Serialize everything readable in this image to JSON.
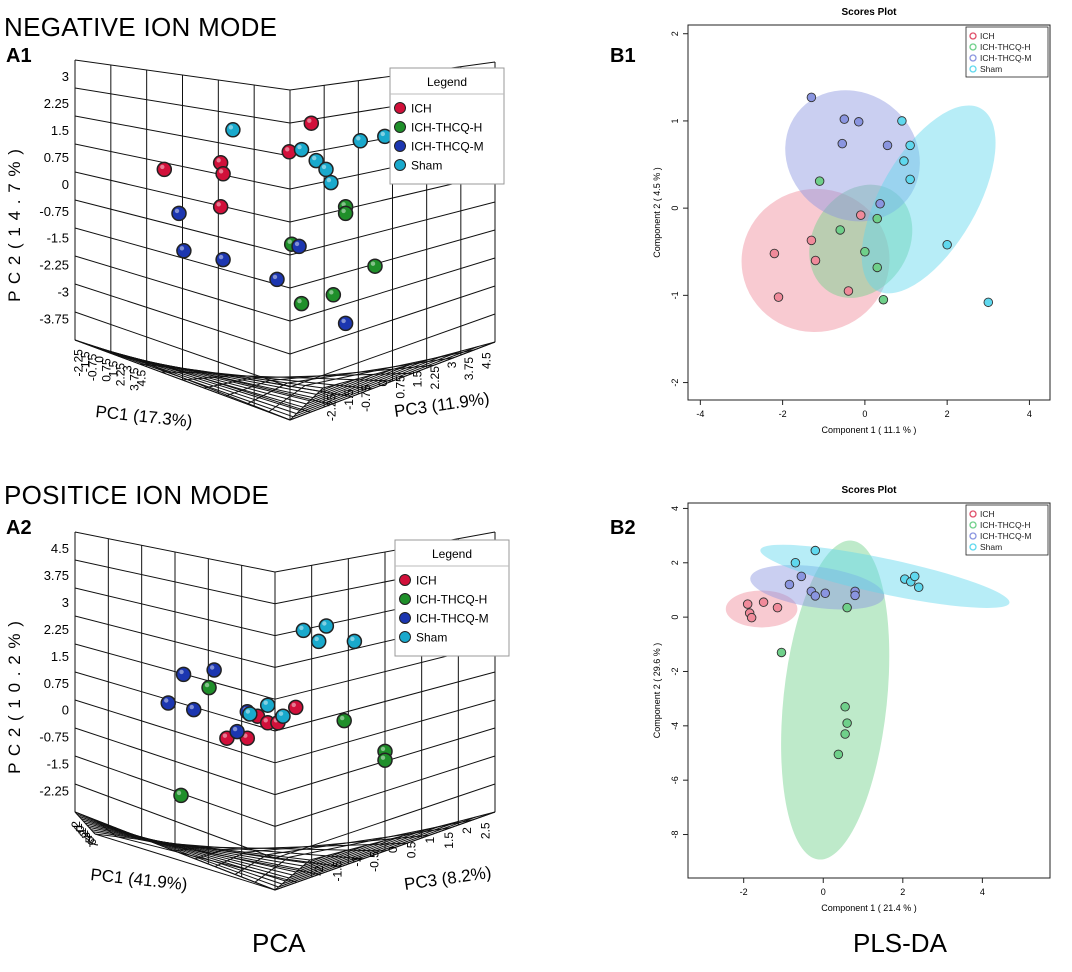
{
  "labels": {
    "negative_mode": "NEGATIVE ION MODE",
    "positive_mode": "POSITICE ION MODE",
    "pca": "PCA",
    "plsda": "PLS-DA"
  },
  "colors": {
    "ICH": "#d1103a",
    "ICH-THCQ-H": "#1f8f2a",
    "ICH-THCQ-M": "#1c36b0",
    "Sham": "#19a9cc"
  },
  "pls_colors": {
    "ICH": "#f08a9a",
    "ICH-THCQ-H": "#6fd08a",
    "ICH-THCQ-M": "#8a95e0",
    "Sham": "#5fd8ee"
  },
  "chart_data": [
    {
      "panel": "A1",
      "type": "scatter",
      "subtype": "3d-scatter",
      "title": "",
      "legend_title": "Legend",
      "legend": [
        "ICH",
        "ICH-THCQ-H",
        "ICH-THCQ-M",
        "Sham"
      ],
      "pc1_label": "PC1 (17.3%)",
      "pc2_label": "P C 2  ( 1 4 . 7 % )",
      "pc3_label": "PC3 (11.9%)",
      "pc1_ticks": [
        "-2.25",
        "-1.5",
        "-0.75",
        "0",
        "0.75",
        "1.5",
        "2.25",
        "3",
        "3.75",
        "4.5"
      ],
      "pc2_ticks": [
        "3",
        "2.25",
        "1.5",
        "0.75",
        "0",
        "-0.75",
        "-1.5",
        "-2.25",
        "-3",
        "-3.75"
      ],
      "pc3_ticks": [
        "-2.25",
        "-1.5",
        "-0.75",
        "0",
        "0.75",
        "1.5",
        "2.25",
        "3",
        "3.75",
        "4.5"
      ],
      "projected_points": [
        {
          "group": "ICH",
          "x": 0.14,
          "y": 0.27
        },
        {
          "group": "ICH",
          "x": 0.37,
          "y": 0.24
        },
        {
          "group": "ICH",
          "x": 0.38,
          "y": 0.29
        },
        {
          "group": "ICH",
          "x": 0.37,
          "y": 0.44
        },
        {
          "group": "ICH",
          "x": 0.65,
          "y": 0.19
        },
        {
          "group": "ICH",
          "x": 0.74,
          "y": 0.06
        },
        {
          "group": "ICH-THCQ-H",
          "x": 0.66,
          "y": 0.61
        },
        {
          "group": "ICH-THCQ-H",
          "x": 0.7,
          "y": 0.88
        },
        {
          "group": "ICH-THCQ-H",
          "x": 0.83,
          "y": 0.84
        },
        {
          "group": "ICH-THCQ-H",
          "x": 0.88,
          "y": 0.44
        },
        {
          "group": "ICH-THCQ-H",
          "x": 0.88,
          "y": 0.47
        },
        {
          "group": "ICH-THCQ-H",
          "x": 1.0,
          "y": 0.71
        },
        {
          "group": "ICH-THCQ-M",
          "x": 0.2,
          "y": 0.47
        },
        {
          "group": "ICH-THCQ-M",
          "x": 0.22,
          "y": 0.64
        },
        {
          "group": "ICH-THCQ-M",
          "x": 0.38,
          "y": 0.68
        },
        {
          "group": "ICH-THCQ-M",
          "x": 0.6,
          "y": 0.77
        },
        {
          "group": "ICH-THCQ-M",
          "x": 0.69,
          "y": 0.62
        },
        {
          "group": "ICH-THCQ-M",
          "x": 0.88,
          "y": 0.97
        },
        {
          "group": "Sham",
          "x": 0.42,
          "y": 0.09
        },
        {
          "group": "Sham",
          "x": 0.7,
          "y": 0.18
        },
        {
          "group": "Sham",
          "x": 0.76,
          "y": 0.23
        },
        {
          "group": "Sham",
          "x": 0.8,
          "y": 0.27
        },
        {
          "group": "Sham",
          "x": 0.82,
          "y": 0.33
        },
        {
          "group": "Sham",
          "x": 0.94,
          "y": 0.14
        },
        {
          "group": "Sham",
          "x": 1.04,
          "y": 0.12
        }
      ]
    },
    {
      "panel": "B1",
      "type": "scatter",
      "title": "Scores Plot",
      "xlabel": "Component 1 ( 11.1 % )",
      "ylabel": "Component 2 ( 4.5 % )",
      "xlim": [
        -4.3,
        4.5
      ],
      "ylim": [
        -2.2,
        2.1
      ],
      "xticks": [
        -4,
        -2,
        0,
        2,
        4
      ],
      "yticks": [
        -2,
        -1,
        0,
        1,
        2
      ],
      "legend": [
        "ICH",
        "ICH-THCQ-H",
        "ICH-THCQ-M",
        "Sham"
      ],
      "points": [
        {
          "group": "ICH",
          "x": -2.1,
          "y": -1.02
        },
        {
          "group": "ICH",
          "x": -2.2,
          "y": -0.52
        },
        {
          "group": "ICH",
          "x": -1.3,
          "y": -0.37
        },
        {
          "group": "ICH",
          "x": -1.2,
          "y": -0.6
        },
        {
          "group": "ICH",
          "x": -0.4,
          "y": -0.95
        },
        {
          "group": "ICH",
          "x": -0.1,
          "y": -0.08
        },
        {
          "group": "ICH-THCQ-H",
          "x": -1.1,
          "y": 0.31
        },
        {
          "group": "ICH-THCQ-H",
          "x": -0.6,
          "y": -0.25
        },
        {
          "group": "ICH-THCQ-H",
          "x": 0.3,
          "y": -0.12
        },
        {
          "group": "ICH-THCQ-H",
          "x": 0.0,
          "y": -0.5
        },
        {
          "group": "ICH-THCQ-H",
          "x": 0.3,
          "y": -0.68
        },
        {
          "group": "ICH-THCQ-H",
          "x": 0.45,
          "y": -1.05
        },
        {
          "group": "ICH-THCQ-M",
          "x": -1.3,
          "y": 1.27
        },
        {
          "group": "ICH-THCQ-M",
          "x": -0.5,
          "y": 1.02
        },
        {
          "group": "ICH-THCQ-M",
          "x": -0.15,
          "y": 0.99
        },
        {
          "group": "ICH-THCQ-M",
          "x": -0.55,
          "y": 0.74
        },
        {
          "group": "ICH-THCQ-M",
          "x": 0.55,
          "y": 0.72
        },
        {
          "group": "ICH-THCQ-M",
          "x": 0.37,
          "y": 0.05
        },
        {
          "group": "Sham",
          "x": 0.9,
          "y": 1.0
        },
        {
          "group": "Sham",
          "x": 1.1,
          "y": 0.72
        },
        {
          "group": "Sham",
          "x": 0.95,
          "y": 0.54
        },
        {
          "group": "Sham",
          "x": 1.1,
          "y": 0.33
        },
        {
          "group": "Sham",
          "x": 2.0,
          "y": -0.42
        },
        {
          "group": "Sham",
          "x": 3.0,
          "y": -1.08
        }
      ],
      "ellipses": [
        {
          "group": "ICH",
          "cx": -1.2,
          "cy": -0.6,
          "rx": 1.8,
          "ry": 0.82,
          "angle": 10
        },
        {
          "group": "ICH-THCQ-H",
          "cx": -0.1,
          "cy": -0.38,
          "rx": 1.45,
          "ry": 0.55,
          "angle": 58
        },
        {
          "group": "ICH-THCQ-M",
          "cx": -0.3,
          "cy": 0.6,
          "rx": 1.7,
          "ry": 0.72,
          "angle": -38
        },
        {
          "group": "Sham",
          "cx": 1.55,
          "cy": 0.1,
          "rx": 2.55,
          "ry": 0.55,
          "angle": 60
        }
      ]
    },
    {
      "panel": "A2",
      "type": "scatter",
      "subtype": "3d-scatter",
      "title": "",
      "legend_title": "Legend",
      "legend": [
        "ICH",
        "ICH-THCQ-H",
        "ICH-THCQ-M",
        "Sham"
      ],
      "pc1_label": "PC1 (41.9%)",
      "pc2_label": "P C 2  ( 1 0 . 2 % )",
      "pc3_label": "PC3 (8.2%)",
      "pc1_ticks": [
        "-2",
        "-1",
        "0",
        "1",
        "2",
        "3",
        "4",
        "5",
        "6",
        "7"
      ],
      "pc2_ticks": [
        "4.5",
        "3.75",
        "3",
        "2.25",
        "1.5",
        "0.75",
        "0",
        "-0.75",
        "-1.5",
        "-2.25"
      ],
      "pc3_ticks": [
        "-2",
        "-1.5",
        "-1",
        "-0.5",
        "0",
        "0.5",
        "1",
        "1.5",
        "2",
        "2.5"
      ],
      "projected_points": [
        {
          "group": "ICH",
          "x": 0.38,
          "y": 0.71
        },
        {
          "group": "ICH",
          "x": 0.46,
          "y": 0.71
        },
        {
          "group": "ICH",
          "x": 0.5,
          "y": 0.61
        },
        {
          "group": "ICH",
          "x": 0.54,
          "y": 0.64
        },
        {
          "group": "ICH",
          "x": 0.58,
          "y": 0.64
        },
        {
          "group": "ICH",
          "x": 0.65,
          "y": 0.57
        },
        {
          "group": "ICH-THCQ-H",
          "x": 0.31,
          "y": 0.48
        },
        {
          "group": "ICH-THCQ-H",
          "x": 0.2,
          "y": 0.97
        },
        {
          "group": "ICH-THCQ-H",
          "x": 0.84,
          "y": 0.63
        },
        {
          "group": "ICH-THCQ-H",
          "x": 1.0,
          "y": 0.77
        },
        {
          "group": "ICH-THCQ-H",
          "x": 1.0,
          "y": 0.81
        },
        {
          "group": "ICH-THCQ-M",
          "x": 0.15,
          "y": 0.55
        },
        {
          "group": "ICH-THCQ-M",
          "x": 0.21,
          "y": 0.42
        },
        {
          "group": "ICH-THCQ-M",
          "x": 0.25,
          "y": 0.58
        },
        {
          "group": "ICH-THCQ-M",
          "x": 0.33,
          "y": 0.4
        },
        {
          "group": "ICH-THCQ-M",
          "x": 0.42,
          "y": 0.68
        },
        {
          "group": "ICH-THCQ-M",
          "x": 0.46,
          "y": 0.59
        },
        {
          "group": "Sham",
          "x": 0.47,
          "y": 0.6
        },
        {
          "group": "Sham",
          "x": 0.54,
          "y": 0.56
        },
        {
          "group": "Sham",
          "x": 0.6,
          "y": 0.61
        },
        {
          "group": "Sham",
          "x": 0.68,
          "y": 0.22
        },
        {
          "group": "Sham",
          "x": 0.74,
          "y": 0.27
        },
        {
          "group": "Sham",
          "x": 0.77,
          "y": 0.2
        },
        {
          "group": "Sham",
          "x": 0.88,
          "y": 0.27
        }
      ]
    },
    {
      "panel": "B2",
      "type": "scatter",
      "title": "Scores Plot",
      "xlabel": "Component 1 ( 21.4 % )",
      "ylabel": "Component 2 ( 29.6 % )",
      "xlim": [
        -3.4,
        5.7
      ],
      "ylim": [
        -9.6,
        4.2
      ],
      "xticks": [
        -2,
        0,
        2,
        4
      ],
      "yticks": [
        -8,
        -6,
        -4,
        -2,
        0,
        2,
        4
      ],
      "legend": [
        "ICH",
        "ICH-THCQ-H",
        "ICH-THCQ-M",
        "Sham"
      ],
      "points": [
        {
          "group": "ICH",
          "x": -1.9,
          "y": 0.48
        },
        {
          "group": "ICH",
          "x": -1.85,
          "y": 0.15
        },
        {
          "group": "ICH",
          "x": -1.8,
          "y": -0.02
        },
        {
          "group": "ICH",
          "x": -1.5,
          "y": 0.55
        },
        {
          "group": "ICH",
          "x": -1.15,
          "y": 0.35
        },
        {
          "group": "ICH-THCQ-H",
          "x": -1.05,
          "y": -1.3
        },
        {
          "group": "ICH-THCQ-H",
          "x": 0.6,
          "y": 0.35
        },
        {
          "group": "ICH-THCQ-H",
          "x": 0.55,
          "y": -3.3
        },
        {
          "group": "ICH-THCQ-H",
          "x": 0.6,
          "y": -3.9
        },
        {
          "group": "ICH-THCQ-H",
          "x": 0.55,
          "y": -4.3
        },
        {
          "group": "ICH-THCQ-H",
          "x": 0.38,
          "y": -5.05
        },
        {
          "group": "ICH-THCQ-M",
          "x": -0.85,
          "y": 1.2
        },
        {
          "group": "ICH-THCQ-M",
          "x": -0.55,
          "y": 1.5
        },
        {
          "group": "ICH-THCQ-M",
          "x": -0.3,
          "y": 0.95
        },
        {
          "group": "ICH-THCQ-M",
          "x": -0.2,
          "y": 0.78
        },
        {
          "group": "ICH-THCQ-M",
          "x": 0.05,
          "y": 0.88
        },
        {
          "group": "ICH-THCQ-M",
          "x": 0.8,
          "y": 0.95
        },
        {
          "group": "ICH-THCQ-M",
          "x": 0.8,
          "y": 0.8
        },
        {
          "group": "Sham",
          "x": -0.7,
          "y": 2.0
        },
        {
          "group": "Sham",
          "x": -0.2,
          "y": 2.45
        },
        {
          "group": "Sham",
          "x": 2.05,
          "y": 1.4
        },
        {
          "group": "Sham",
          "x": 2.2,
          "y": 1.3
        },
        {
          "group": "Sham",
          "x": 2.3,
          "y": 1.5
        },
        {
          "group": "Sham",
          "x": 2.4,
          "y": 1.1
        }
      ],
      "ellipses": [
        {
          "group": "ICH",
          "cx": -1.55,
          "cy": 0.3,
          "rx": 0.9,
          "ry": 0.68,
          "angle": 0
        },
        {
          "group": "ICH-THCQ-H",
          "cx": 0.3,
          "cy": -3.05,
          "rx": 1.3,
          "ry": 5.9,
          "angle": -6
        },
        {
          "group": "ICH-THCQ-M",
          "cx": -0.15,
          "cy": 1.1,
          "rx": 1.7,
          "ry": 0.75,
          "angle": -8
        },
        {
          "group": "Sham",
          "cx": 1.55,
          "cy": 1.5,
          "rx": 3.2,
          "ry": 0.65,
          "angle": -12
        }
      ]
    }
  ]
}
